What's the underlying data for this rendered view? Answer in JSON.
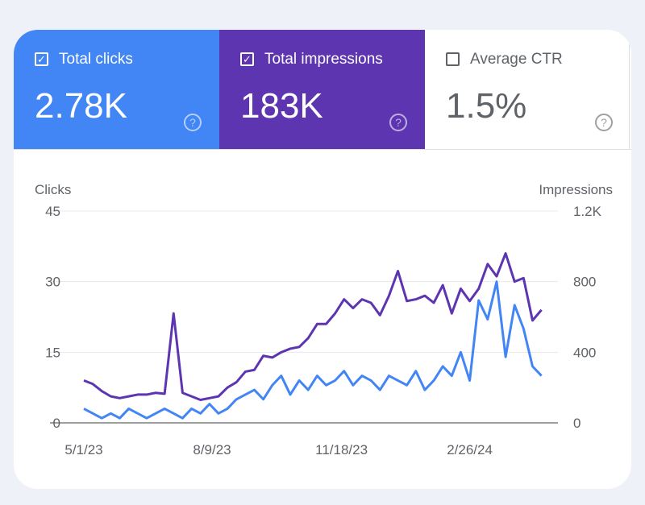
{
  "tiles": [
    {
      "label": "Total clicks",
      "value": "2.78K",
      "checked": true,
      "color": "#4285f4",
      "help": "?"
    },
    {
      "label": "Total impressions",
      "value": "183K",
      "checked": true,
      "color": "#5e35b1",
      "help": "?"
    },
    {
      "label": "Average CTR",
      "value": "1.5%",
      "checked": false,
      "color": "#ffffff",
      "help": "?"
    }
  ],
  "chart_data": {
    "type": "line",
    "ylabel_left": "Clicks",
    "ylabel_right": "Impressions",
    "ylim_left": [
      0,
      45
    ],
    "ylim_right": [
      0,
      1200
    ],
    "yticks_left": [
      "0",
      "15",
      "30",
      "45"
    ],
    "yticks_right": [
      "0",
      "400",
      "800",
      "1.2K"
    ],
    "xticks": [
      "5/1/23",
      "8/9/23",
      "11/18/23",
      "2/26/24"
    ],
    "grid": true,
    "x": [
      "2023-05-01",
      "2023-05-08",
      "2023-05-15",
      "2023-05-22",
      "2023-05-29",
      "2023-06-05",
      "2023-06-12",
      "2023-06-19",
      "2023-06-26",
      "2023-07-03",
      "2023-07-10",
      "2023-07-17",
      "2023-07-24",
      "2023-07-31",
      "2023-08-07",
      "2023-08-14",
      "2023-08-21",
      "2023-08-28",
      "2023-09-04",
      "2023-09-11",
      "2023-09-18",
      "2023-09-25",
      "2023-10-02",
      "2023-10-09",
      "2023-10-16",
      "2023-10-23",
      "2023-10-30",
      "2023-11-06",
      "2023-11-13",
      "2023-11-20",
      "2023-11-27",
      "2023-12-04",
      "2023-12-11",
      "2023-12-18",
      "2023-12-25",
      "2024-01-01",
      "2024-01-08",
      "2024-01-15",
      "2024-01-22",
      "2024-01-29",
      "2024-02-05",
      "2024-02-12",
      "2024-02-19",
      "2024-02-26",
      "2024-03-04",
      "2024-03-11",
      "2024-03-18",
      "2024-03-25",
      "2024-04-01",
      "2024-04-08",
      "2024-04-15",
      "2024-04-22"
    ],
    "series": [
      {
        "name": "Clicks",
        "axis": "left",
        "color": "#4285f4",
        "values": [
          3,
          2,
          1,
          2,
          1,
          3,
          2,
          1,
          2,
          3,
          2,
          1,
          3,
          2,
          4,
          2,
          3,
          5,
          6,
          7,
          5,
          8,
          10,
          6,
          9,
          7,
          10,
          8,
          9,
          11,
          8,
          10,
          9,
          7,
          10,
          9,
          8,
          11,
          7,
          9,
          12,
          10,
          15,
          9,
          26,
          22,
          30,
          14,
          25,
          20,
          12,
          10
        ]
      },
      {
        "name": "Impressions",
        "axis": "right",
        "color": "#5e35b1",
        "values": [
          240,
          220,
          180,
          150,
          140,
          150,
          160,
          160,
          170,
          165,
          620,
          170,
          150,
          130,
          140,
          150,
          200,
          230,
          290,
          300,
          380,
          370,
          400,
          420,
          430,
          480,
          560,
          560,
          620,
          700,
          650,
          700,
          680,
          610,
          720,
          860,
          690,
          700,
          720,
          680,
          780,
          620,
          760,
          690,
          760,
          900,
          830,
          960,
          800,
          820,
          580,
          640
        ]
      }
    ]
  }
}
